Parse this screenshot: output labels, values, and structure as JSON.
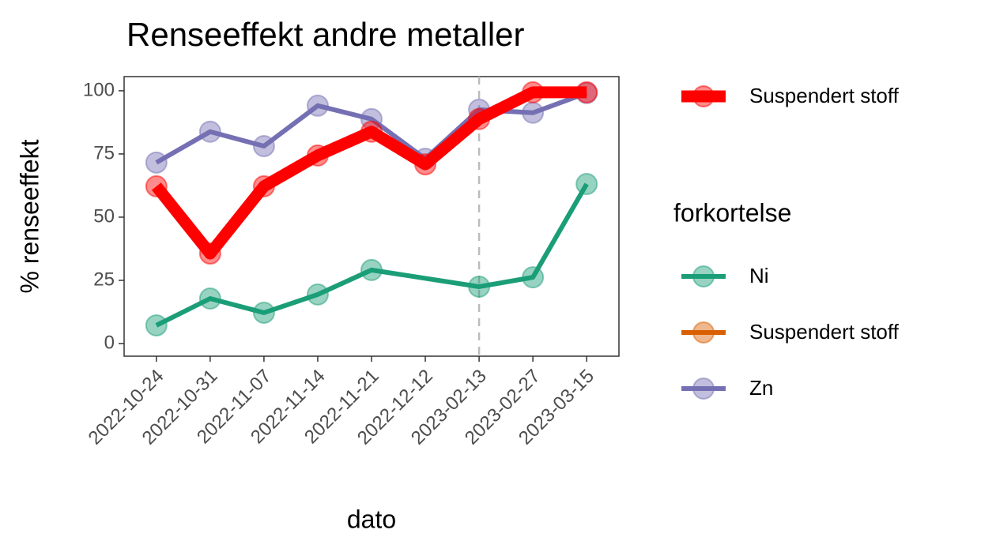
{
  "chart_data": {
    "type": "line",
    "title": "Renseeffekt andre metaller",
    "x_label": "dato",
    "y_label": "% renseeffekt",
    "categories": [
      "2022-10-24",
      "2022-10-31",
      "2022-11-07",
      "2022-11-14",
      "2022-11-21",
      "2022-12-12",
      "2023-02-13",
      "2023-02-27",
      "2023-03-15"
    ],
    "ylim": [
      -5,
      105.6
    ],
    "yticks": [
      0,
      25,
      50,
      75,
      100
    ],
    "vline_x": "2023-02-13",
    "highlight": {
      "name": "Suspendert stoff",
      "color": "#ff0000",
      "values": [
        62.2,
        35.6,
        62.2,
        74.4,
        83.8,
        70.9,
        88.8,
        99.4,
        99.4
      ]
    },
    "legend_title": "forkortelse",
    "series": [
      {
        "name": "Ni",
        "color": "#1b9e77",
        "values": [
          7.2,
          17.8,
          12.2,
          19.4,
          29.1,
          null,
          22.5,
          26.2,
          63.1
        ]
      },
      {
        "name": "Suspendert stoff",
        "color": "#d95f02"
      },
      {
        "name": "Zn",
        "color": "#7570b3",
        "values": [
          71.6,
          83.8,
          78.1,
          94.1,
          88.8,
          73.1,
          92.5,
          91.3,
          99.1
        ]
      }
    ]
  }
}
